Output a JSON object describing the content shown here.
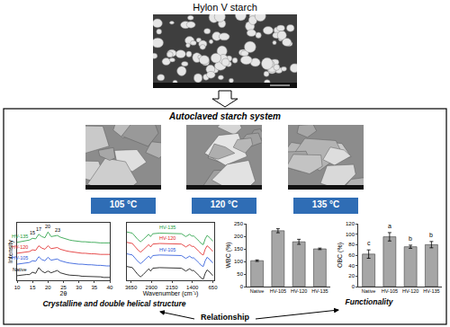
{
  "title": "Hylon V starch",
  "system": {
    "title": "Autoclaved starch system",
    "temperatures": [
      "105 °C",
      "120 °C",
      "135 °C"
    ]
  },
  "chart_data": [
    {
      "type": "line",
      "x_label": "2θ",
      "y_label": "Intensity",
      "x": [
        10,
        11,
        12,
        13,
        14,
        15,
        16,
        17,
        18,
        19,
        20,
        21,
        22,
        23,
        24,
        25,
        26,
        27,
        28,
        29,
        30,
        31,
        32,
        33,
        34,
        35,
        36,
        37,
        38,
        39,
        40
      ],
      "series": [
        {
          "name": "Native",
          "color": "#000000",
          "values": [
            8,
            9,
            9,
            10,
            10,
            14,
            12,
            22,
            16,
            13,
            16,
            13,
            15,
            17,
            13,
            11,
            10,
            9,
            9,
            8,
            8,
            7,
            7,
            7,
            6,
            6,
            6,
            6,
            5,
            5,
            5
          ]
        },
        {
          "name": "HV-105",
          "color": "#1f4fd8",
          "values": [
            28,
            29,
            30,
            30,
            31,
            34,
            33,
            41,
            36,
            34,
            40,
            35,
            36,
            37,
            34,
            32,
            31,
            30,
            29,
            29,
            28,
            28,
            27,
            27,
            27,
            26,
            26,
            26,
            25,
            25,
            25
          ]
        },
        {
          "name": "HV-120",
          "color": "#e02020",
          "values": [
            47,
            48,
            49,
            50,
            50,
            53,
            52,
            60,
            56,
            54,
            60,
            55,
            56,
            57,
            54,
            52,
            51,
            50,
            49,
            48,
            48,
            47,
            47,
            46,
            46,
            46,
            45,
            45,
            45,
            45,
            45
          ]
        },
        {
          "name": "HV-135",
          "color": "#1a9a3a",
          "values": [
            66,
            67,
            68,
            69,
            70,
            73,
            72,
            80,
            76,
            74,
            84,
            76,
            77,
            78,
            75,
            73,
            71,
            70,
            69,
            68,
            68,
            67,
            67,
            66,
            66,
            66,
            65,
            65,
            65,
            65,
            65
          ]
        }
      ],
      "annotations": [
        {
          "text": "Native",
          "x": 11,
          "y": 11,
          "color": "#000000"
        },
        {
          "text": "HV-105",
          "x": 11,
          "y": 31,
          "color": "#1f4fd8"
        },
        {
          "text": "HV-120",
          "x": 11,
          "y": 50,
          "color": "#e02020"
        },
        {
          "text": "HV-135",
          "x": 11,
          "y": 69,
          "color": "#1a9a3a"
        },
        {
          "text": "15",
          "x": 15,
          "y": 75
        },
        {
          "text": "17",
          "x": 17,
          "y": 82
        },
        {
          "text": "20",
          "x": 20,
          "y": 86
        },
        {
          "text": "23",
          "x": 23,
          "y": 80
        }
      ],
      "xlim": [
        10,
        40
      ],
      "xticks": [
        10,
        15,
        20,
        25,
        30,
        35,
        40
      ],
      "ylim": [
        0,
        100
      ],
      "tick_labels": "x"
    },
    {
      "type": "line",
      "x_label": "Wavenumber (cm⁻¹)",
      "x": [
        3800,
        3600,
        3400,
        3300,
        3200,
        3000,
        2930,
        2850,
        2600,
        2400,
        2200,
        2000,
        1800,
        1640,
        1500,
        1420,
        1350,
        1150,
        1080,
        1000,
        930,
        860,
        760,
        650
      ],
      "series": [
        {
          "name": "Native",
          "color": "#000000",
          "values": [
            24,
            22,
            10,
            6,
            10,
            20,
            16,
            21,
            22,
            22,
            22,
            22,
            21,
            16,
            20,
            17,
            17,
            8,
            4,
            2,
            12,
            18,
            14,
            8
          ]
        },
        {
          "name": "HV-105",
          "color": "#1f4fd8",
          "values": [
            46,
            44,
            33,
            29,
            33,
            42,
            38,
            43,
            44,
            44,
            44,
            44,
            43,
            38,
            42,
            39,
            39,
            30,
            26,
            24,
            34,
            40,
            36,
            30
          ]
        },
        {
          "name": "HV-120",
          "color": "#e02020",
          "values": [
            66,
            64,
            53,
            49,
            53,
            62,
            58,
            63,
            64,
            64,
            64,
            64,
            63,
            58,
            62,
            59,
            59,
            50,
            46,
            44,
            54,
            60,
            56,
            50
          ]
        },
        {
          "name": "HV-135",
          "color": "#1a9a3a",
          "values": [
            84,
            82,
            71,
            67,
            71,
            80,
            76,
            81,
            82,
            82,
            82,
            82,
            81,
            76,
            80,
            77,
            77,
            68,
            64,
            62,
            72,
            78,
            74,
            68
          ]
        }
      ],
      "annotations": [
        {
          "text": "HV-105",
          "x": 2300,
          "y": 46,
          "color": "#1f4fd8"
        },
        {
          "text": "HV-120",
          "x": 2300,
          "y": 66,
          "color": "#e02020"
        },
        {
          "text": "HV-135",
          "x": 2300,
          "y": 84,
          "color": "#1a9a3a"
        }
      ],
      "xlim": [
        3800,
        600
      ],
      "xticks": [
        3650,
        2900,
        2150,
        1400,
        650
      ],
      "ylim": [
        0,
        100
      ],
      "tick_labels": "x"
    },
    {
      "type": "bar",
      "y_label": "WBC (%)",
      "categories": [
        "Native",
        "HV-105",
        "HV-120",
        "HV-135"
      ],
      "values": [
        103,
        222,
        178,
        150
      ],
      "errors": [
        3,
        8,
        10,
        3
      ],
      "color": "#a6a6a6",
      "ylim": [
        0,
        250
      ],
      "yticks": [
        0,
        50,
        100,
        150,
        200,
        250
      ]
    },
    {
      "type": "bar",
      "y_label": "OBC (%)",
      "categories": [
        "Native",
        "HV-105",
        "HV-120",
        "HV-135"
      ],
      "values": [
        62,
        95,
        76,
        80
      ],
      "errors": [
        8,
        8,
        3,
        6
      ],
      "color": "#a6a6a6",
      "ylim": [
        0,
        120
      ],
      "yticks": [
        0,
        20,
        40,
        60,
        80,
        100,
        120
      ],
      "annotations": [
        {
          "text": "c",
          "x": 0,
          "y": 73
        },
        {
          "text": "a",
          "x": 1,
          "y": 106
        },
        {
          "text": "b",
          "x": 2,
          "y": 82
        },
        {
          "text": "b",
          "x": 3,
          "y": 89
        }
      ]
    }
  ],
  "labels": {
    "structure": "Crystalline and double helical structure",
    "functionality": "Functionality",
    "relationship": "Relationship"
  }
}
